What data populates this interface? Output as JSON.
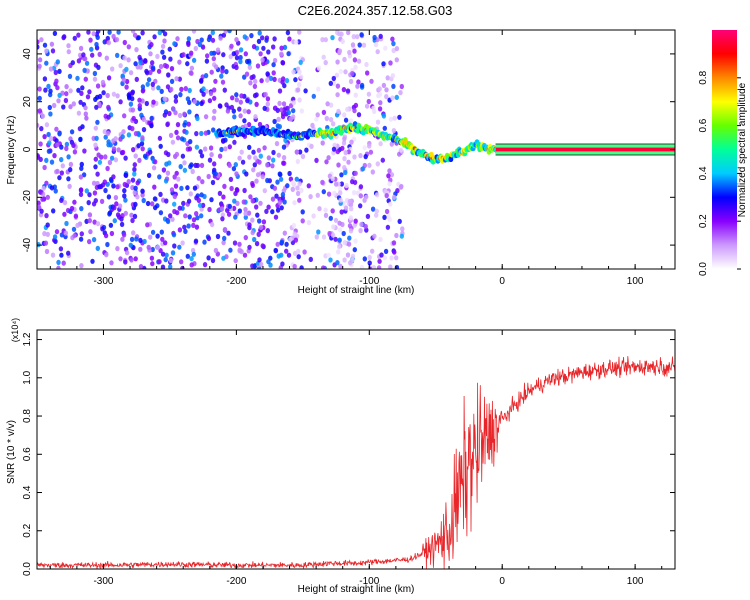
{
  "title": "C2E6.2024.357.12.58.G03",
  "chart_data": [
    {
      "type": "heatmap",
      "xlabel": "Height of straight line (km)",
      "ylabel": "Frequency (Hz)",
      "xlim": [
        -350,
        130
      ],
      "ylim": [
        -50,
        50
      ],
      "xticks": [
        -300,
        -200,
        -100,
        0,
        100
      ],
      "yticks": [
        -40,
        -20,
        0,
        20,
        40
      ],
      "colorbar": {
        "label": "Normalized spectral amplitude",
        "range": [
          0,
          1
        ],
        "ticks": [
          "0.0",
          "0.2",
          "0.4",
          "0.6",
          "0.8"
        ],
        "colors": [
          "#ffffff",
          "#cc99ff",
          "#8800ff",
          "#0000ff",
          "#00ccff",
          "#00ff99",
          "#66ff00",
          "#ffff00",
          "#ff8800",
          "#ff0000",
          "#ff0077"
        ]
      },
      "ridge": {
        "name": "",
        "x": [
          -210,
          -190,
          -170,
          -155,
          -140,
          -130,
          -120,
          -110,
          -100,
          -90,
          -80,
          -70,
          -60,
          -50,
          -40,
          -30,
          -20,
          -10,
          0,
          130
        ],
        "y": [
          7,
          8,
          7,
          5,
          7,
          6,
          9,
          9,
          8,
          6,
          4,
          2,
          -2,
          -4,
          -3,
          -1,
          2,
          0,
          0,
          0
        ]
      },
      "carrier_amplitude": 0.95
    },
    {
      "type": "line",
      "xlabel": "Height of straight line (km)",
      "ylabel": "SNR (10 * v/v)",
      "yscale_label": "(x10⁴)",
      "xlim": [
        -350,
        130
      ],
      "ylim": [
        0,
        1.25
      ],
      "xticks": [
        -300,
        -200,
        -100,
        0,
        100
      ],
      "yticks": [
        "0.0",
        "0.2",
        "0.4",
        "0.6",
        "0.8",
        "1.0",
        "1.2"
      ],
      "series": [
        {
          "name": "",
          "color": "#e8262a",
          "x": [
            -350,
            -300,
            -250,
            -200,
            -150,
            -130,
            -110,
            -90,
            -70,
            -60,
            -50,
            -40,
            -35,
            -30,
            -25,
            -20,
            -15,
            -10,
            -5,
            0,
            10,
            20,
            30,
            40,
            50,
            60,
            70,
            80,
            90,
            100,
            110,
            120,
            130
          ],
          "y": [
            0.02,
            0.02,
            0.025,
            0.02,
            0.02,
            0.03,
            0.03,
            0.04,
            0.05,
            0.08,
            0.12,
            0.2,
            0.32,
            0.45,
            0.55,
            0.6,
            0.65,
            0.7,
            0.74,
            0.78,
            0.86,
            0.93,
            0.97,
            1.0,
            1.01,
            1.03,
            1.04,
            1.05,
            1.05,
            1.06,
            1.06,
            1.06,
            1.05
          ]
        }
      ]
    }
  ]
}
